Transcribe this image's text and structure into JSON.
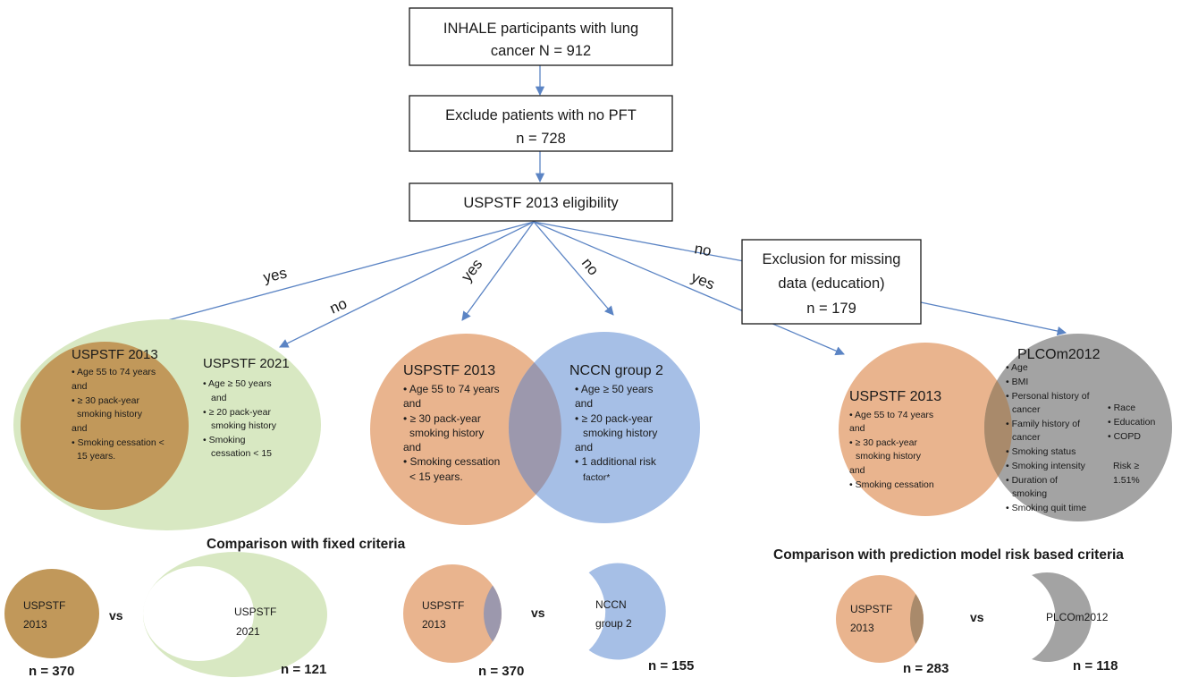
{
  "colors": {
    "line": "#5b84c4",
    "box_border": "#1a1a1a",
    "green": "#d8e8c2",
    "dark_orange": "#c1985a",
    "orange": "#e9b48e",
    "blue": "#a6bfe6",
    "gray": "#a3a3a3",
    "overlap_brown": "#a98a6b",
    "overlap_blue": "#9c98ad"
  },
  "boxes": {
    "start": [
      "INHALE participants with lung",
      "cancer N = 912"
    ],
    "exclude_pft": [
      "Exclude patients with no PFT",
      "n = 728"
    ],
    "eligibility": "USPSTF 2013 eligibility",
    "missing": [
      "Exclusion for missing",
      "data (education)",
      "n = 179"
    ]
  },
  "edge_labels": {
    "yes_left": "yes",
    "no_left": "no",
    "yes_mid": "yes",
    "no_mid": "no",
    "no_right": "no",
    "yes_right": "yes"
  },
  "venn1": {
    "left_title": "USPSTF 2013",
    "left_items": [
      "• Age 55 to 74 years",
      "and",
      "• ≥ 30 pack-year",
      "smoking history",
      "and",
      "• Smoking cessation <",
      "15 years."
    ],
    "right_title": "USPSTF 2021",
    "right_items": [
      "• Age ≥ 50 years",
      "and",
      "• ≥ 20 pack-year",
      "smoking history",
      "• Smoking",
      "cessation < 15"
    ]
  },
  "venn2": {
    "left_title": "USPSTF 2013",
    "left_items": [
      "• Age 55 to 74 years",
      "and",
      "• ≥ 30 pack-year",
      "smoking history",
      "and",
      "• Smoking cessation",
      "< 15 years."
    ],
    "right_title": "NCCN group 2",
    "right_items": [
      "• Age ≥ 50 years",
      "and",
      "• ≥ 20 pack-year",
      "smoking history",
      "and",
      "• 1 additional risk",
      "factor*"
    ]
  },
  "venn3": {
    "left_title": "USPSTF 2013",
    "left_items": [
      "• Age 55 to 74 years",
      "and",
      "• ≥ 30 pack-year",
      "smoking history",
      "and",
      "• Smoking cessation"
    ],
    "right_title": "PLCOm2012",
    "right_items": [
      "• Age",
      "• BMI",
      "• Personal history of",
      "cancer",
      "• Family history of",
      "cancer",
      "• Smoking status",
      "• Smoking intensity",
      "• Duration of",
      "smoking",
      "• Smoking quit time"
    ],
    "right_items2": [
      "• Race",
      "• Education",
      "• COPD"
    ],
    "risk": [
      "Risk ≥",
      "1.51%"
    ]
  },
  "section_titles": {
    "fixed": "Comparison with fixed criteria",
    "prediction": "Comparison with prediction model risk based criteria"
  },
  "comparisons": {
    "c1": {
      "left_label": [
        "USPSTF",
        "2013"
      ],
      "vs": "vs",
      "right_label": [
        "USPSTF",
        "2021"
      ],
      "left_n": "n = 370",
      "right_n": "n = 121"
    },
    "c2": {
      "left_label": [
        "USPSTF",
        "2013"
      ],
      "vs": "vs",
      "right_label": [
        "NCCN",
        "group 2"
      ],
      "left_n": "n = 370",
      "right_n": "n = 155"
    },
    "c3": {
      "left_label": [
        "USPSTF",
        "2013"
      ],
      "vs": "vs",
      "right_label": [
        "PLCOm2012"
      ],
      "left_n": "n = 283",
      "right_n": "n = 118"
    }
  }
}
